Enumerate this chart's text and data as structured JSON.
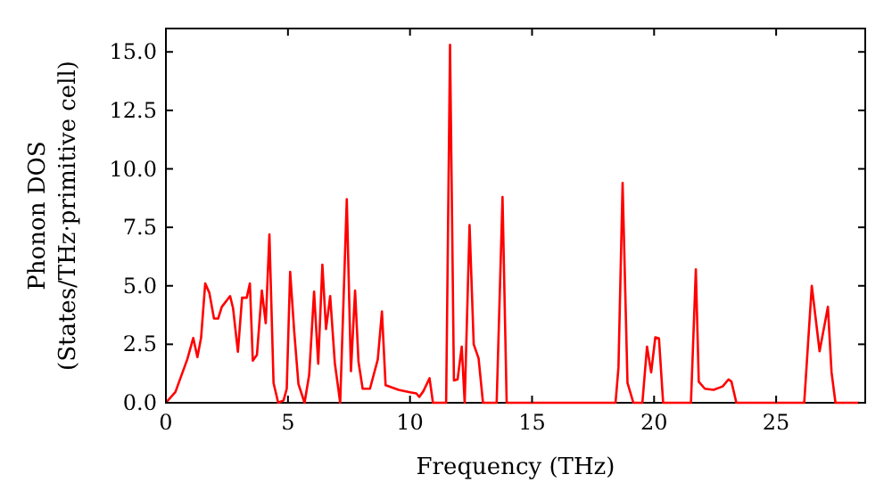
{
  "chart_data": {
    "type": "line",
    "xlabel": "Frequency (THz)",
    "ylabel": "Phonon DOS\n(States/THz·primitive cell)",
    "xlim": [
      0,
      28.65
    ],
    "ylim": [
      0,
      16
    ],
    "xticks": [
      0,
      5,
      10,
      15,
      20,
      25
    ],
    "yticks": [
      {
        "value": 0,
        "label": "0.0"
      },
      {
        "value": 2.5,
        "label": "2.5"
      },
      {
        "value": 5,
        "label": "5.0"
      },
      {
        "value": 7.5,
        "label": "7.5"
      },
      {
        "value": 10,
        "label": "10.0"
      },
      {
        "value": 12.5,
        "label": "12.5"
      },
      {
        "value": 15,
        "label": "15.0"
      }
    ],
    "grid": false,
    "series": [
      {
        "color": "#ff0000",
        "x": [
          0,
          0.39,
          0.88,
          1.12,
          1.29,
          1.44,
          1.61,
          1.78,
          1.97,
          2.14,
          2.29,
          2.63,
          2.75,
          2.95,
          3.12,
          3.31,
          3.44,
          3.56,
          3.73,
          3.93,
          4.09,
          4.24,
          4.41,
          4.6,
          4.82,
          4.95,
          5.09,
          5.26,
          5.43,
          5.68,
          5.87,
          6.07,
          6.24,
          6.41,
          6.56,
          6.73,
          6.92,
          7.14,
          7.41,
          7.58,
          7.75,
          7.89,
          8.06,
          8.36,
          8.68,
          8.85,
          9.0,
          9.53,
          10.0,
          10.26,
          10.38,
          10.55,
          10.8,
          10.94,
          11.48,
          11.64,
          11.8,
          11.95,
          12.12,
          12.24,
          12.44,
          12.61,
          12.81,
          12.99,
          13.55,
          13.79,
          13.96,
          18.42,
          18.54,
          18.71,
          18.91,
          19.15,
          19.52,
          19.71,
          19.88,
          20.05,
          20.2,
          20.37,
          21.51,
          21.71,
          21.83,
          22.08,
          22.44,
          22.81,
          23.05,
          23.17,
          23.37,
          26.15,
          26.46,
          26.78,
          27.12,
          27.27,
          27.43,
          28.4
        ],
        "values": [
          0,
          0.46,
          1.87,
          2.77,
          1.95,
          2.77,
          5.1,
          4.7,
          3.6,
          3.6,
          4.1,
          4.56,
          4.05,
          2.18,
          4.49,
          4.49,
          5.1,
          1.8,
          2.05,
          4.8,
          3.4,
          7.2,
          0.85,
          0,
          0.1,
          0.6,
          5.6,
          3.0,
          0.8,
          0,
          1.2,
          4.75,
          1.67,
          5.9,
          3.15,
          4.56,
          1.7,
          0,
          8.7,
          1.35,
          4.8,
          1.75,
          0.6,
          0.6,
          1.85,
          3.9,
          0.75,
          0.55,
          0.45,
          0.4,
          0.25,
          0.5,
          1.05,
          0,
          0,
          15.3,
          0.95,
          1.0,
          2.4,
          0,
          7.6,
          2.5,
          1.9,
          0,
          0,
          8.8,
          0,
          0,
          1.5,
          9.4,
          0.85,
          0,
          0,
          2.4,
          1.3,
          2.8,
          2.75,
          0,
          0,
          5.7,
          0.9,
          0.6,
          0.55,
          0.7,
          1.0,
          0.9,
          0,
          0,
          5.0,
          2.2,
          4.1,
          1.3,
          0,
          0
        ]
      }
    ]
  }
}
